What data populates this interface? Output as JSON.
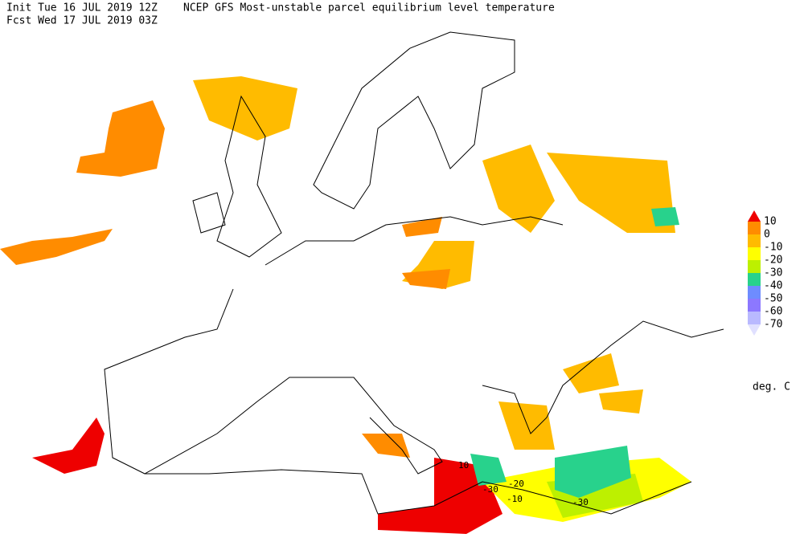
{
  "header": {
    "init": "Init  Tue 16 JUL 2019 12Z",
    "title": "NCEP GFS Most-unstable parcel equilibrium level temperature",
    "forecast": "Fcst Wed 17 JUL 2019 03Z"
  },
  "legend": {
    "labels": [
      "10",
      "0",
      "-10",
      "-20",
      "-30",
      "-40",
      "-50",
      "-60",
      "-70"
    ],
    "colors": [
      "#ee0000",
      "#ff8c00",
      "#ffbb00",
      "#ffff00",
      "#bdf000",
      "#28d28c",
      "#6e8cff",
      "#8c78ff",
      "#b9b9ff",
      "#e0e0ff"
    ],
    "unit": "deg. C"
  },
  "contour_labels": [
    "10",
    "-30",
    "-20",
    "-10",
    "-30"
  ]
}
